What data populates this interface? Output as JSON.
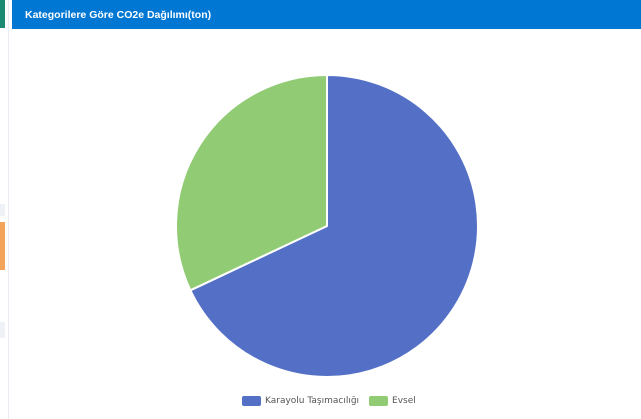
{
  "panel": {
    "title": "Kategorilere Göre CO2e Dağılımı(ton)"
  },
  "colors": {
    "header": "#0077d3",
    "series_1": "#5470c6",
    "series_2": "#91cc75"
  },
  "chart_data": {
    "type": "pie",
    "title": "Kategorilere Göre CO2e Dağılımı(ton)",
    "categories": [
      "Karayolu Taşımacılığı",
      "Evsel"
    ],
    "values": [
      68,
      32
    ],
    "legend_placement": "bottom-center",
    "colors": [
      "#5470c6",
      "#91cc75"
    ]
  }
}
